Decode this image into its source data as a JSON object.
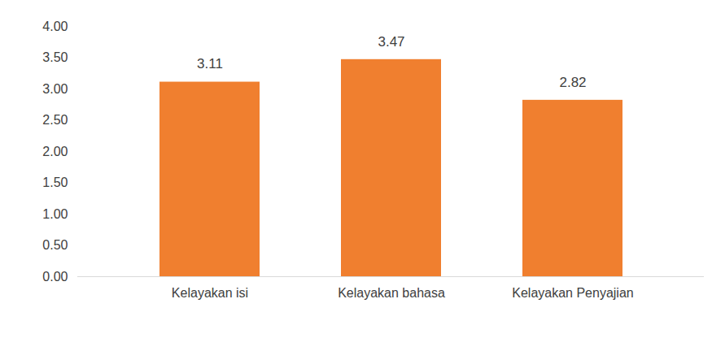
{
  "chart_data": {
    "type": "bar",
    "categories": [
      "Kelayakan isi",
      "Kelayakan bahasa",
      "Kelayakan Penyajian"
    ],
    "values": [
      3.11,
      3.47,
      2.82
    ],
    "color": "#f07f2f",
    "ylim": [
      0,
      4
    ],
    "yticks": [
      {
        "value": 0,
        "label": "0.00"
      },
      {
        "value": 0.5,
        "label": "0.50"
      },
      {
        "value": 1,
        "label": "1.00"
      },
      {
        "value": 1.5,
        "label": "1.50"
      },
      {
        "value": 2,
        "label": "2.00"
      },
      {
        "value": 2.5,
        "label": "2.50"
      },
      {
        "value": 3,
        "label": "3.00"
      },
      {
        "value": 3.5,
        "label": "3.50"
      },
      {
        "value": 4,
        "label": "4.00"
      }
    ],
    "grid": false,
    "data_labels": true
  }
}
